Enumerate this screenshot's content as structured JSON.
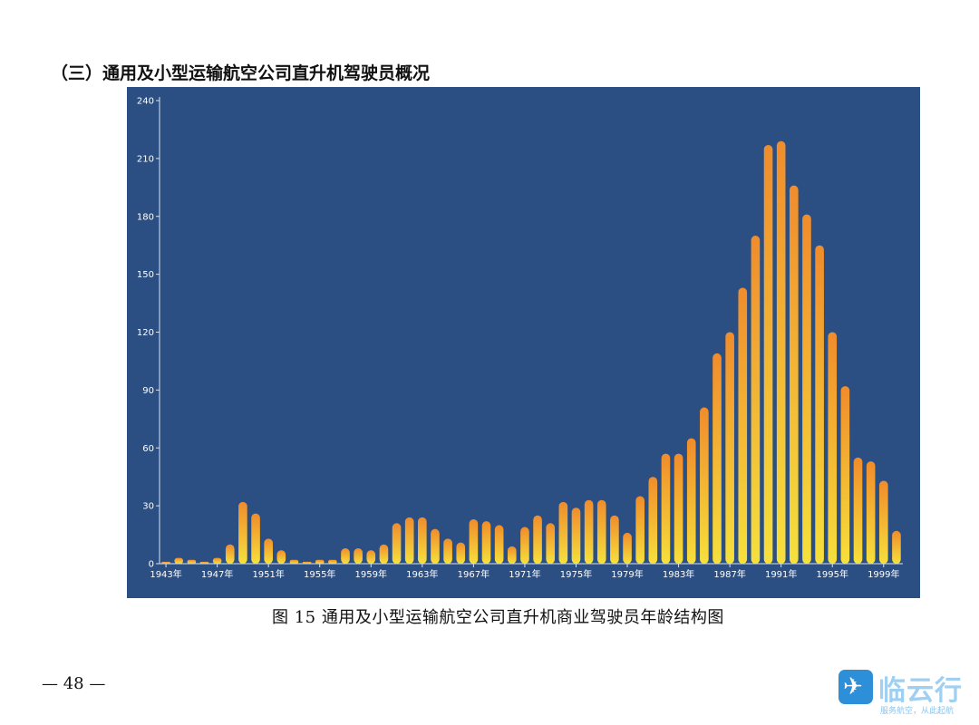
{
  "heading": "（三）通用及小型运输航空公司直升机驾驶员概况",
  "caption": "图 15  通用及小型运输航空公司直升机商业驾驶员年龄结构图",
  "page_number": "— 48 —",
  "watermark": {
    "name": "临云行",
    "sub": "服务航空，从此起航",
    "icon": "airplane-icon"
  },
  "colors": {
    "panel_background": "#2b4f83",
    "bar_top": "#f08c2c",
    "bar_bottom": "#f6e03c",
    "axis_text": "#ffffff"
  },
  "chart_data": {
    "type": "bar",
    "title": "",
    "xlabel": "",
    "ylabel": "",
    "ylim": [
      0,
      240
    ],
    "yticks": [
      "0",
      "30",
      "60",
      "90",
      "120",
      "150",
      "180",
      "210",
      "240"
    ],
    "x_tick_labels": [
      "1943年",
      "1947年",
      "1951年",
      "1955年",
      "1959年",
      "1963年",
      "1967年",
      "1971年",
      "1975年",
      "1979年",
      "1983年",
      "1987年",
      "1991年",
      "1995年",
      "1999年"
    ],
    "categories": [
      1943,
      1944,
      1945,
      1946,
      1947,
      1948,
      1949,
      1950,
      1951,
      1952,
      1953,
      1954,
      1955,
      1956,
      1957,
      1958,
      1959,
      1960,
      1961,
      1962,
      1963,
      1964,
      1965,
      1966,
      1967,
      1968,
      1969,
      1970,
      1971,
      1972,
      1973,
      1974,
      1975,
      1976,
      1977,
      1978,
      1979,
      1980,
      1981,
      1982,
      1983,
      1984,
      1985,
      1986,
      1987,
      1988,
      1989,
      1990,
      1991,
      1992,
      1993,
      1994,
      1995,
      1996,
      1997,
      1998,
      1999,
      2000
    ],
    "values": [
      1,
      3,
      2,
      1,
      3,
      10,
      32,
      26,
      13,
      7,
      2,
      1,
      2,
      2,
      8,
      8,
      7,
      10,
      21,
      24,
      24,
      18,
      13,
      11,
      23,
      22,
      20,
      9,
      19,
      25,
      21,
      32,
      29,
      33,
      33,
      25,
      16,
      35,
      45,
      57,
      57,
      65,
      81,
      109,
      120,
      143,
      170,
      217,
      219,
      196,
      181,
      165,
      120,
      92,
      55,
      53,
      43,
      17
    ],
    "grid": false,
    "legend": "none"
  }
}
